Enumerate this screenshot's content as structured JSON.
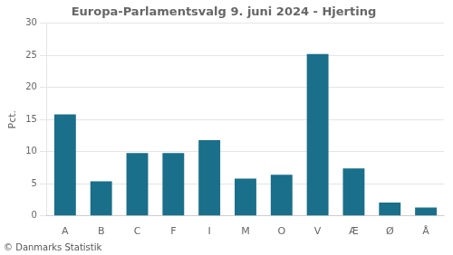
{
  "chart_data": {
    "type": "bar",
    "title": "Europa-Parlamentsvalg 9. juni 2024 - Hjerting",
    "categories": [
      "A",
      "B",
      "C",
      "F",
      "I",
      "M",
      "O",
      "V",
      "Æ",
      "Ø",
      "Å"
    ],
    "values": [
      15.8,
      5.4,
      9.8,
      9.8,
      11.8,
      5.8,
      6.4,
      25.2,
      7.4,
      2.1,
      1.3
    ],
    "color": "#1a6f8a",
    "ylabel": "Pct.",
    "ylim": [
      0,
      30
    ],
    "yticks": [
      0,
      5,
      10,
      15,
      20,
      25,
      30
    ],
    "grid": true,
    "annotations": [
      "© Danmarks Statistik"
    ]
  }
}
